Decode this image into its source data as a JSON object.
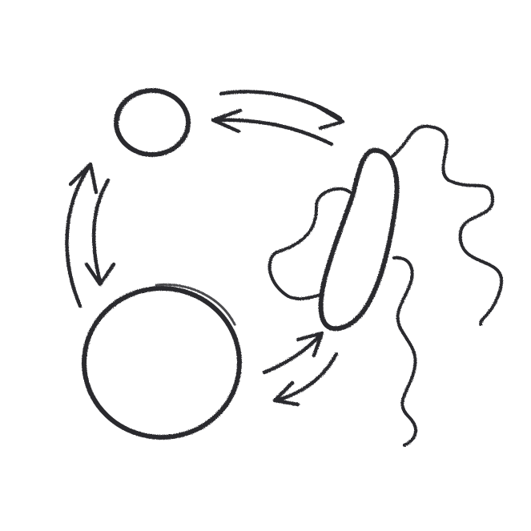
{
  "palette": {
    "background": "#ffffff",
    "outline": "#2b2b2f",
    "yellow": "#f2e22a",
    "cyan": "#22e6f2",
    "red": "#f23a14"
  },
  "elements": {
    "yellow_circle": {
      "color": "yellow"
    },
    "cyan_circle": {
      "color": "cyan"
    },
    "red_bacterium": {
      "color": "red",
      "flagella": 3
    },
    "arrows": [
      "yellow-to-bacterium",
      "bacterium-to-yellow",
      "yellow-to-cyan",
      "cyan-to-yellow",
      "cyan-to-bacterium",
      "bacterium-to-cyan"
    ]
  }
}
